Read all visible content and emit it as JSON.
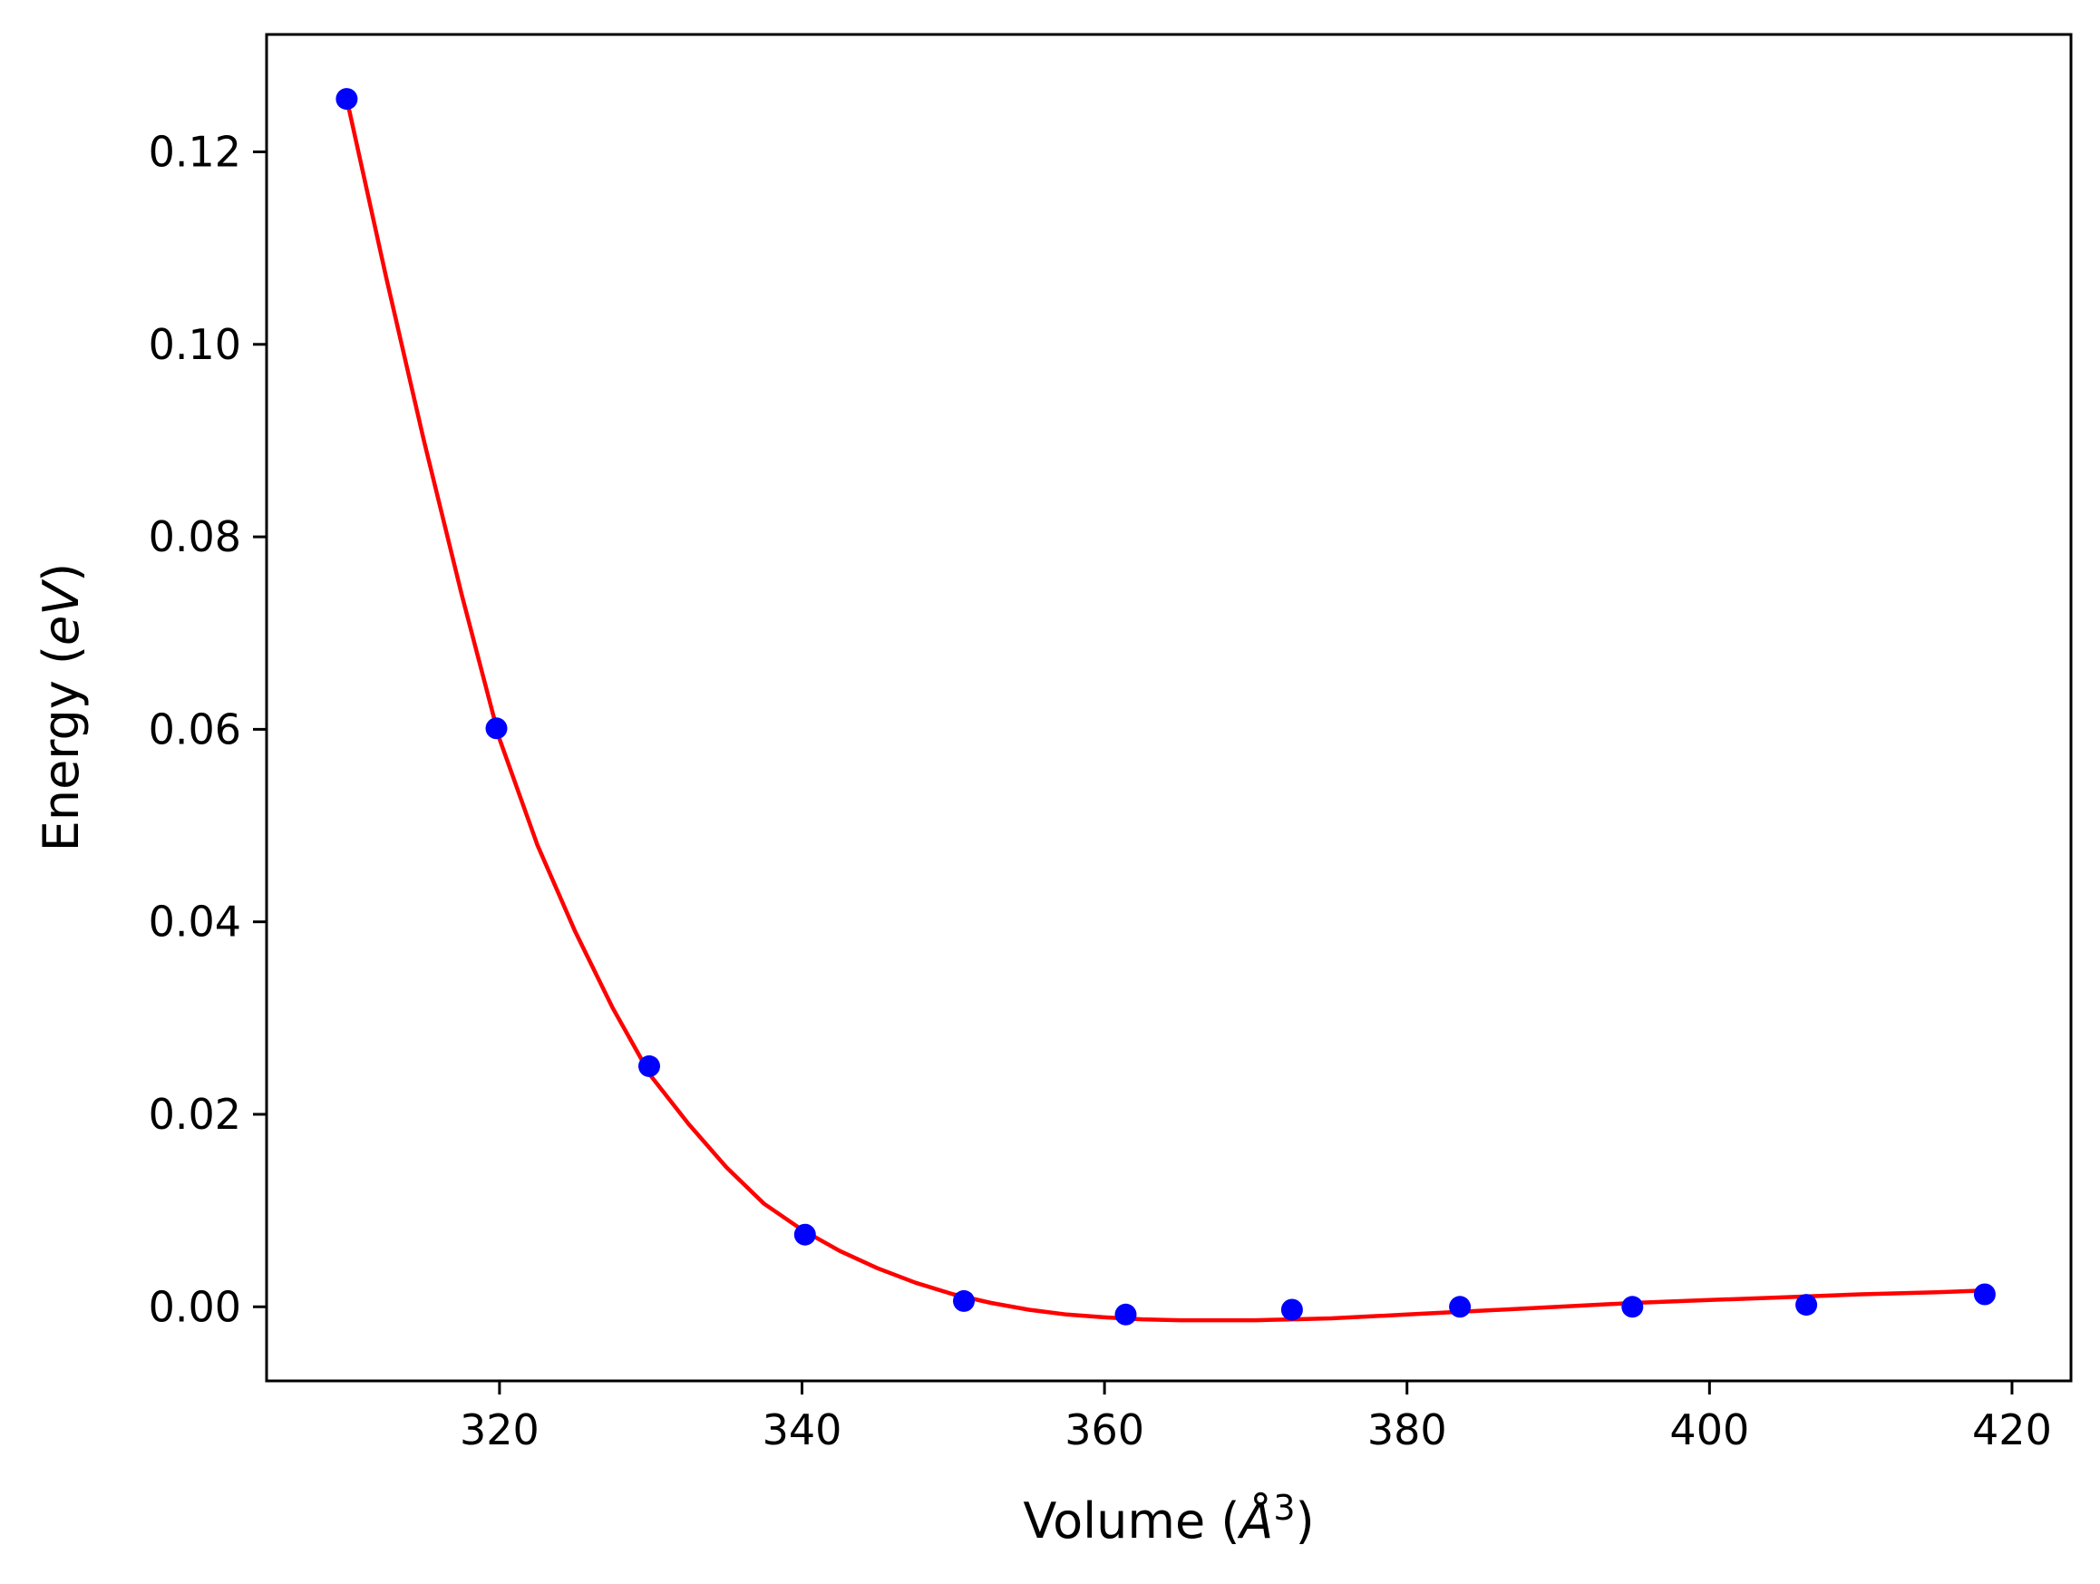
{
  "chart_data": {
    "type": "scatter",
    "title": "",
    "xlabel": {
      "pre": "Volume (",
      "var": "Å",
      "sup": "3",
      "post": ")"
    },
    "ylabel": {
      "pre": "Energy (",
      "var": "eV",
      "post": ")"
    },
    "xlim": [
      304.6,
      423.9
    ],
    "ylim": [
      -0.0077,
      0.1322
    ],
    "xticks": [
      320,
      340,
      360,
      380,
      400,
      420
    ],
    "xtick_labels": [
      "320",
      "340",
      "360",
      "380",
      "400",
      "420"
    ],
    "yticks": [
      0.0,
      0.02,
      0.04,
      0.06,
      0.08,
      0.1,
      0.12
    ],
    "ytick_labels": [
      "0.00",
      "0.02",
      "0.04",
      "0.06",
      "0.08",
      "0.10",
      "0.12"
    ],
    "grid": false,
    "series": [
      {
        "type": "scatter",
        "color": "#0000ff",
        "x": [
          309.9,
          319.8,
          329.9,
          340.2,
          350.7,
          361.4,
          372.4,
          383.5,
          394.9,
          406.4,
          418.2
        ],
        "y": [
          0.1255,
          0.0601,
          0.025,
          0.0075,
          0.0006,
          -0.0008,
          -0.0003,
          0.0,
          0.0,
          0.0002,
          0.0013
        ]
      },
      {
        "type": "line",
        "color": "#ff0000",
        "x": [
          309.9,
          312.5,
          315.0,
          317.5,
          320.0,
          322.5,
          325.0,
          327.5,
          330.0,
          332.5,
          335.0,
          337.5,
          340.0,
          342.5,
          345.0,
          347.5,
          350.0,
          352.5,
          355.0,
          357.5,
          360.0,
          362.5,
          365.0,
          367.5,
          370.0,
          372.5,
          375.0,
          377.5,
          380.0,
          385.0,
          390.0,
          395.0,
          400.0,
          405.0,
          410.0,
          415.0,
          418.2
        ],
        "y": [
          0.1255,
          0.107,
          0.09,
          0.074,
          0.059,
          0.048,
          0.039,
          0.031,
          0.024,
          0.019,
          0.0145,
          0.0107,
          0.008,
          0.0058,
          0.004,
          0.0025,
          0.0013,
          0.0004,
          -0.0003,
          -0.0008,
          -0.0011,
          -0.0013,
          -0.0014,
          -0.0014,
          -0.0014,
          -0.0013,
          -0.0012,
          -0.001,
          -0.0008,
          -0.0004,
          0.0,
          0.0004,
          0.0007,
          0.001,
          0.0013,
          0.0015,
          0.0017
        ]
      }
    ]
  }
}
